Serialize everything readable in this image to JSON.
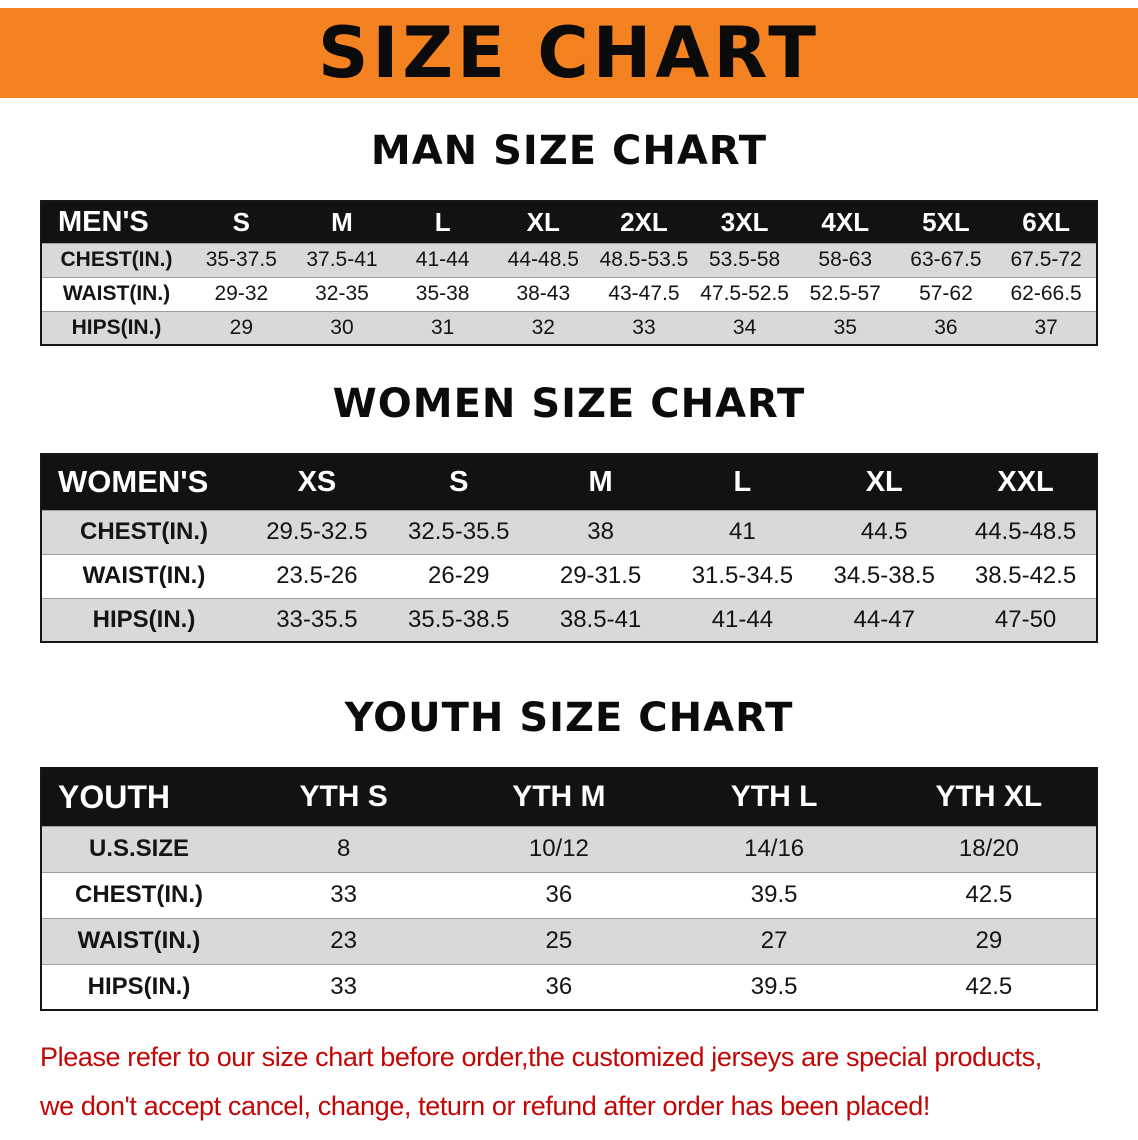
{
  "banner": {
    "title": "SIZE CHART"
  },
  "colors": {
    "banner_bg": "#F58220",
    "table_header_bg": "#121212",
    "row_alt_bg": "#D9D9D9",
    "note_color": "#C40505"
  },
  "sections": [
    {
      "title": "MAN SIZE CHART",
      "header": [
        "MEN'S",
        "S",
        "M",
        "L",
        "XL",
        "2XL",
        "3XL",
        "4XL",
        "5XL",
        "6XL"
      ],
      "rows": [
        [
          "CHEST(IN.)",
          "35-37.5",
          "37.5-41",
          "41-44",
          "44-48.5",
          "48.5-53.5",
          "53.5-58",
          "58-63",
          "63-67.5",
          "67.5-72"
        ],
        [
          "WAIST(IN.)",
          "29-32",
          "32-35",
          "35-38",
          "38-43",
          "43-47.5",
          "47.5-52.5",
          "52.5-57",
          "57-62",
          "62-66.5"
        ],
        [
          "HIPS(IN.)",
          "29",
          "30",
          "31",
          "32",
          "33",
          "34",
          "35",
          "36",
          "37"
        ]
      ]
    },
    {
      "title": "WOMEN SIZE CHART",
      "header": [
        "WOMEN'S",
        "XS",
        "S",
        "M",
        "L",
        "XL",
        "XXL"
      ],
      "rows": [
        [
          "CHEST(IN.)",
          "29.5-32.5",
          "32.5-35.5",
          "38",
          "41",
          "44.5",
          "44.5-48.5"
        ],
        [
          "WAIST(IN.)",
          "23.5-26",
          "26-29",
          "29-31.5",
          "31.5-34.5",
          "34.5-38.5",
          "38.5-42.5"
        ],
        [
          "HIPS(IN.)",
          "33-35.5",
          "35.5-38.5",
          "38.5-41",
          "41-44",
          "44-47",
          "47-50"
        ]
      ]
    },
    {
      "title": "YOUTH SIZE CHART",
      "header": [
        "YOUTH",
        "YTH S",
        "YTH M",
        "YTH L",
        "YTH XL"
      ],
      "rows": [
        [
          "U.S.SIZE",
          "8",
          "10/12",
          "14/16",
          "18/20"
        ],
        [
          "CHEST(IN.)",
          "33",
          "36",
          "39.5",
          "42.5"
        ],
        [
          "WAIST(IN.)",
          "23",
          "25",
          "27",
          "29"
        ],
        [
          "HIPS(IN.)",
          "33",
          "36",
          "39.5",
          "42.5"
        ]
      ]
    }
  ],
  "note": {
    "lines": [
      "Please refer to our size chart before order,the customized jerseys are special products,",
      "we don't accept cancel, change, teturn or refund after order has been placed!"
    ]
  }
}
